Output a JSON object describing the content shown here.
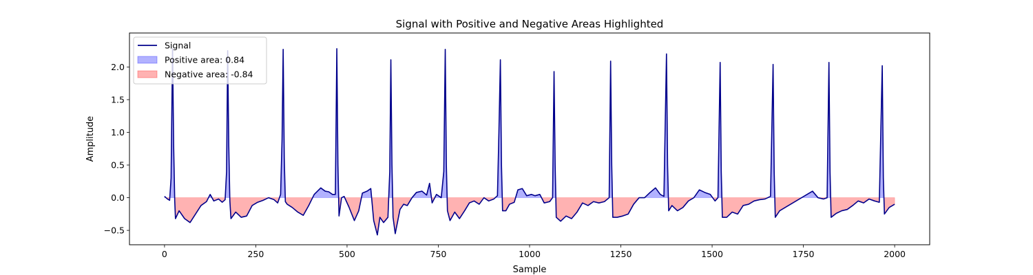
{
  "chart_data": {
    "type": "line",
    "title": "Signal with Positive and Negative Areas Highlighted",
    "xlabel": "Sample",
    "ylabel": "Amplitude",
    "xlim": [
      -96,
      2096
    ],
    "ylim": [
      -0.72,
      2.52
    ],
    "xticks": [
      0,
      250,
      500,
      750,
      1000,
      1250,
      1500,
      1750,
      2000
    ],
    "yticks": [
      -0.5,
      0.0,
      0.5,
      1.0,
      1.5,
      2.0
    ],
    "xtick_labels": [
      "0",
      "250",
      "500",
      "750",
      "1000",
      "1250",
      "1500",
      "1750",
      "2000"
    ],
    "ytick_labels": [
      "−0.5",
      "0.0",
      "0.5",
      "1.0",
      "1.5",
      "2.0"
    ],
    "grid": false,
    "legend_position": "top-left",
    "legend": [
      {
        "label": "Signal",
        "kind": "line",
        "color": "#00008b"
      },
      {
        "label": "Positive area: 0.84",
        "kind": "patch",
        "color": "#0000ff"
      },
      {
        "label": "Negative area: -0.84",
        "kind": "patch",
        "color": "#ff0000"
      }
    ],
    "colors": {
      "signal": "#00008b",
      "positive_fill": "#0000ff",
      "negative_fill": "#ff0000"
    },
    "series": [
      {
        "name": "Signal",
        "points": [
          [
            0,
            0.02
          ],
          [
            8,
            -0.02
          ],
          [
            14,
            -0.04
          ],
          [
            18,
            0.3
          ],
          [
            22,
            2.28
          ],
          [
            25,
            0.8
          ],
          [
            28,
            -0.05
          ],
          [
            30,
            -0.32
          ],
          [
            40,
            -0.2
          ],
          [
            55,
            -0.32
          ],
          [
            70,
            -0.38
          ],
          [
            85,
            -0.25
          ],
          [
            100,
            -0.12
          ],
          [
            115,
            -0.06
          ],
          [
            125,
            0.05
          ],
          [
            135,
            -0.05
          ],
          [
            148,
            -0.02
          ],
          [
            158,
            -0.07
          ],
          [
            166,
            -0.03
          ],
          [
            170,
            0.4
          ],
          [
            173,
            2.25
          ],
          [
            176,
            0.8
          ],
          [
            179,
            -0.05
          ],
          [
            182,
            -0.32
          ],
          [
            195,
            -0.22
          ],
          [
            210,
            -0.3
          ],
          [
            225,
            -0.28
          ],
          [
            240,
            -0.12
          ],
          [
            255,
            -0.07
          ],
          [
            270,
            -0.04
          ],
          [
            285,
            0.0
          ],
          [
            300,
            -0.03
          ],
          [
            310,
            -0.08
          ],
          [
            318,
            0.05
          ],
          [
            322,
            0.9
          ],
          [
            325,
            2.27
          ],
          [
            328,
            0.6
          ],
          [
            331,
            -0.06
          ],
          [
            336,
            -0.1
          ],
          [
            350,
            -0.15
          ],
          [
            365,
            -0.22
          ],
          [
            380,
            -0.27
          ],
          [
            395,
            -0.12
          ],
          [
            410,
            0.05
          ],
          [
            428,
            0.15
          ],
          [
            440,
            0.1
          ],
          [
            450,
            0.09
          ],
          [
            460,
            0.05
          ],
          [
            468,
            0.05
          ],
          [
            472,
            2.28
          ],
          [
            475,
            0.5
          ],
          [
            478,
            -0.28
          ],
          [
            485,
            0.0
          ],
          [
            492,
            0.02
          ],
          [
            505,
            -0.14
          ],
          [
            520,
            -0.35
          ],
          [
            532,
            -0.2
          ],
          [
            542,
            0.07
          ],
          [
            555,
            0.1
          ],
          [
            565,
            0.14
          ],
          [
            573,
            -0.35
          ],
          [
            583,
            -0.57
          ],
          [
            590,
            -0.3
          ],
          [
            600,
            -0.38
          ],
          [
            612,
            -0.3
          ],
          [
            617,
            0.4
          ],
          [
            620,
            2.11
          ],
          [
            623,
            0.5
          ],
          [
            626,
            -0.3
          ],
          [
            632,
            -0.55
          ],
          [
            645,
            -0.18
          ],
          [
            655,
            -0.1
          ],
          [
            665,
            -0.12
          ],
          [
            678,
            0.0
          ],
          [
            690,
            0.08
          ],
          [
            705,
            0.1
          ],
          [
            718,
            0.04
          ],
          [
            726,
            0.22
          ],
          [
            733,
            -0.08
          ],
          [
            745,
            0.05
          ],
          [
            758,
            0.0
          ],
          [
            765,
            0.4
          ],
          [
            769,
            2.27
          ],
          [
            772,
            0.5
          ],
          [
            775,
            -0.2
          ],
          [
            782,
            -0.35
          ],
          [
            795,
            -0.22
          ],
          [
            808,
            -0.32
          ],
          [
            822,
            -0.2
          ],
          [
            835,
            -0.08
          ],
          [
            848,
            -0.05
          ],
          [
            862,
            -0.1
          ],
          [
            875,
            0.0
          ],
          [
            888,
            -0.05
          ],
          [
            902,
            -0.02
          ],
          [
            912,
            0.03
          ],
          [
            916,
            1.0
          ],
          [
            920,
            2.11
          ],
          [
            923,
            0.5
          ],
          [
            926,
            -0.2
          ],
          [
            935,
            -0.2
          ],
          [
            945,
            -0.1
          ],
          [
            958,
            -0.07
          ],
          [
            968,
            0.12
          ],
          [
            980,
            0.14
          ],
          [
            992,
            0.03
          ],
          [
            1005,
            0.05
          ],
          [
            1015,
            0.03
          ],
          [
            1028,
            0.05
          ],
          [
            1040,
            -0.08
          ],
          [
            1055,
            -0.06
          ],
          [
            1063,
            0.0
          ],
          [
            1067,
            1.93
          ],
          [
            1070,
            0.5
          ],
          [
            1073,
            -0.3
          ],
          [
            1085,
            -0.36
          ],
          [
            1100,
            -0.28
          ],
          [
            1115,
            -0.32
          ],
          [
            1130,
            -0.22
          ],
          [
            1145,
            -0.08
          ],
          [
            1160,
            -0.12
          ],
          [
            1175,
            -0.06
          ],
          [
            1190,
            -0.08
          ],
          [
            1205,
            -0.06
          ],
          [
            1218,
            0.0
          ],
          [
            1222,
            2.09
          ],
          [
            1225,
            0.5
          ],
          [
            1228,
            -0.3
          ],
          [
            1240,
            -0.3
          ],
          [
            1255,
            -0.28
          ],
          [
            1270,
            -0.25
          ],
          [
            1285,
            -0.1
          ],
          [
            1300,
            0.0
          ],
          [
            1315,
            0.0
          ],
          [
            1330,
            0.08
          ],
          [
            1345,
            0.15
          ],
          [
            1358,
            0.05
          ],
          [
            1368,
            0.02
          ],
          [
            1375,
            2.2
          ],
          [
            1378,
            0.5
          ],
          [
            1381,
            -0.2
          ],
          [
            1390,
            -0.12
          ],
          [
            1405,
            -0.2
          ],
          [
            1420,
            -0.15
          ],
          [
            1435,
            -0.05
          ],
          [
            1450,
            0.0
          ],
          [
            1465,
            0.12
          ],
          [
            1480,
            0.08
          ],
          [
            1495,
            0.05
          ],
          [
            1508,
            -0.05
          ],
          [
            1516,
            0.0
          ],
          [
            1522,
            2.07
          ],
          [
            1525,
            0.4
          ],
          [
            1528,
            -0.3
          ],
          [
            1540,
            -0.3
          ],
          [
            1555,
            -0.22
          ],
          [
            1570,
            -0.25
          ],
          [
            1585,
            -0.12
          ],
          [
            1600,
            -0.1
          ],
          [
            1615,
            -0.05
          ],
          [
            1630,
            -0.03
          ],
          [
            1645,
            -0.02
          ],
          [
            1660,
            0.02
          ],
          [
            1667,
            2.04
          ],
          [
            1670,
            0.4
          ],
          [
            1673,
            -0.3
          ],
          [
            1685,
            -0.2
          ],
          [
            1700,
            -0.15
          ],
          [
            1715,
            -0.1
          ],
          [
            1730,
            -0.05
          ],
          [
            1745,
            0.0
          ],
          [
            1760,
            0.05
          ],
          [
            1775,
            0.1
          ],
          [
            1790,
            0.0
          ],
          [
            1805,
            -0.02
          ],
          [
            1815,
            0.0
          ],
          [
            1820,
            2.07
          ],
          [
            1823,
            0.4
          ],
          [
            1826,
            -0.3
          ],
          [
            1840,
            -0.24
          ],
          [
            1855,
            -0.2
          ],
          [
            1870,
            -0.18
          ],
          [
            1885,
            -0.12
          ],
          [
            1900,
            -0.05
          ],
          [
            1915,
            -0.08
          ],
          [
            1930,
            -0.02
          ],
          [
            1945,
            -0.05
          ],
          [
            1958,
            -0.07
          ],
          [
            1966,
            2.02
          ],
          [
            1969,
            0.3
          ],
          [
            1972,
            -0.25
          ],
          [
            1985,
            -0.15
          ],
          [
            2000,
            -0.1
          ]
        ]
      }
    ]
  }
}
